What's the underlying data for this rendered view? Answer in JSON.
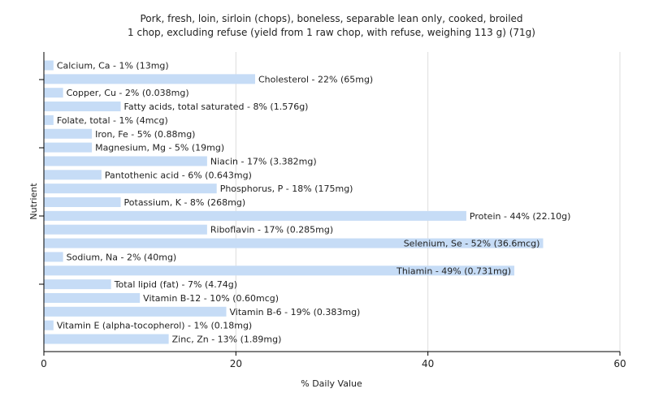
{
  "chart_data": {
    "type": "bar",
    "orientation": "horizontal",
    "title": "Pork, fresh, loin, sirloin (chops), boneless, separable lean only, cooked, broiled",
    "subtitle": "1 chop, excluding refuse (yield from 1 raw chop, with refuse, weighing 113 g) (71g)",
    "xlabel": "% Daily Value",
    "ylabel": "Nutrient",
    "xlim": [
      0,
      60
    ],
    "xticks": [
      0,
      20,
      40,
      60
    ],
    "grid": true,
    "bar_color": "#c6dcf6",
    "grid_color": "#dddddd",
    "categories": [
      "Calcium, Ca",
      "Cholesterol",
      "Copper, Cu",
      "Fatty acids, total saturated",
      "Folate, total",
      "Iron, Fe",
      "Magnesium, Mg",
      "Niacin",
      "Pantothenic acid",
      "Phosphorus, P",
      "Potassium, K",
      "Protein",
      "Riboflavin",
      "Selenium, Se",
      "Sodium, Na",
      "Thiamin",
      "Total lipid (fat)",
      "Vitamin B-12",
      "Vitamin B-6",
      "Vitamin E (alpha-tocopherol)",
      "Zinc, Zn"
    ],
    "values": [
      1,
      22,
      2,
      8,
      1,
      5,
      5,
      17,
      6,
      18,
      8,
      44,
      17,
      52,
      2,
      49,
      7,
      10,
      19,
      1,
      13
    ],
    "labels": [
      "Calcium, Ca - 1% (13mg)",
      "Cholesterol - 22% (65mg)",
      "Copper, Cu - 2% (0.038mg)",
      "Fatty acids, total saturated - 8% (1.576g)",
      "Folate, total - 1% (4mcg)",
      "Iron, Fe - 5% (0.88mg)",
      "Magnesium, Mg - 5% (19mg)",
      "Niacin - 17% (3.382mg)",
      "Pantothenic acid - 6% (0.643mg)",
      "Phosphorus, P - 18% (175mg)",
      "Potassium, K - 8% (268mg)",
      "Protein - 44% (22.10g)",
      "Riboflavin - 17% (0.285mg)",
      "Selenium, Se - 52% (36.6mcg)",
      "Sodium, Na - 2% (40mg)",
      "Thiamin - 49% (0.731mg)",
      "Total lipid (fat) - 7% (4.74g)",
      "Vitamin B-12 - 10% (0.60mcg)",
      "Vitamin B-6 - 19% (0.383mg)",
      "Vitamin E (alpha-tocopherol) - 1% (0.18mg)",
      "Zinc, Zn - 13% (1.89mg)"
    ]
  }
}
